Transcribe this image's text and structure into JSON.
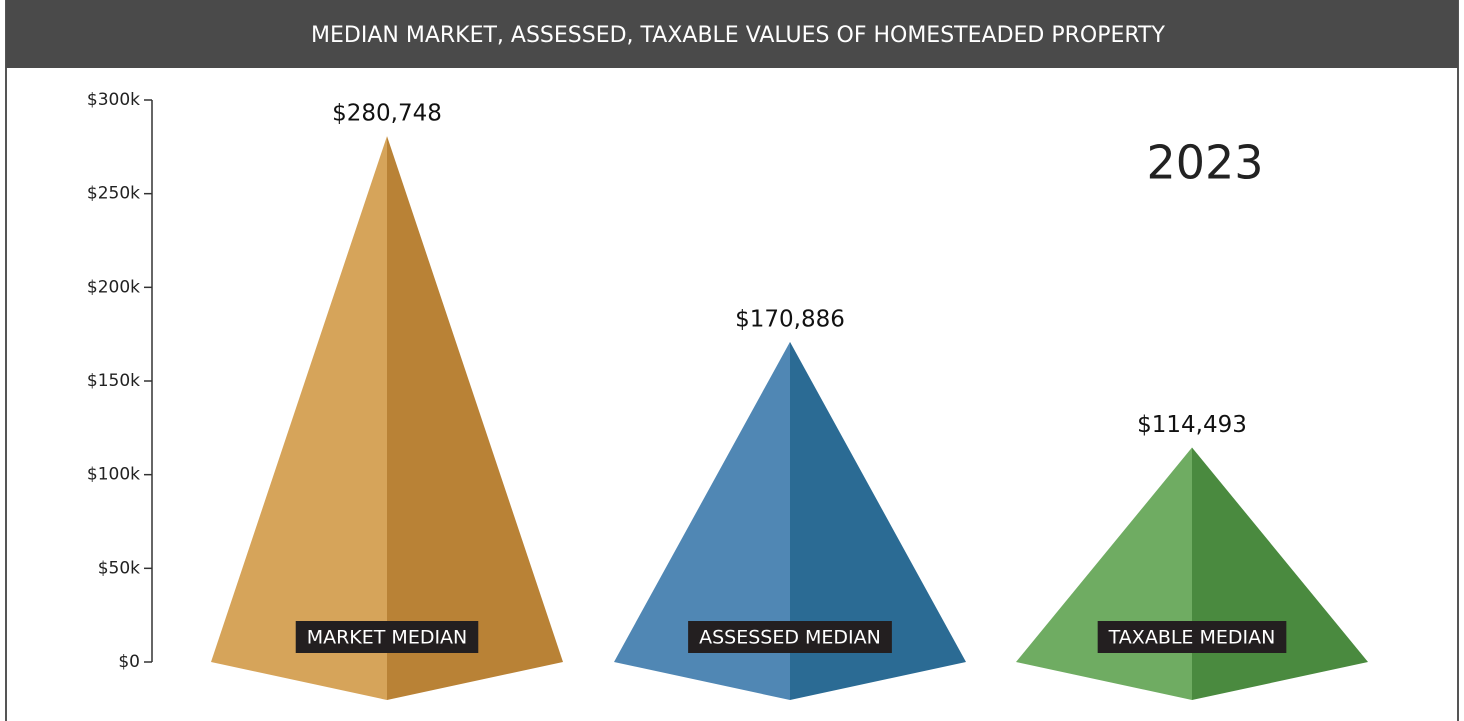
{
  "chart_data": {
    "type": "pyramid",
    "title": "MEDIAN MARKET, ASSESSED, TAXABLE VALUES OF HOMESTEADED PROPERTY",
    "annotation": "2023",
    "categories": [
      "MARKET MEDIAN",
      "ASSESSED MEDIAN",
      "TAXABLE MEDIAN"
    ],
    "values": [
      280748,
      170886,
      114493
    ],
    "value_labels": [
      "$280,748",
      "$170,886",
      "$114,493"
    ],
    "colors": [
      "#d6a45a",
      "#5087b4",
      "#6fac62"
    ],
    "dark_colors": [
      "#b98236",
      "#2b6b94",
      "#4a8a3f"
    ],
    "ylim": [
      0,
      300000
    ],
    "yticks": [
      {
        "value": 0,
        "label": "$0"
      },
      {
        "value": 50000,
        "label": "$50k"
      },
      {
        "value": 100000,
        "label": "$100k"
      },
      {
        "value": 150000,
        "label": "$150k"
      },
      {
        "value": 200000,
        "label": "$200k"
      },
      {
        "value": 250000,
        "label": "$250k"
      },
      {
        "value": 300000,
        "label": "$300k"
      }
    ]
  }
}
